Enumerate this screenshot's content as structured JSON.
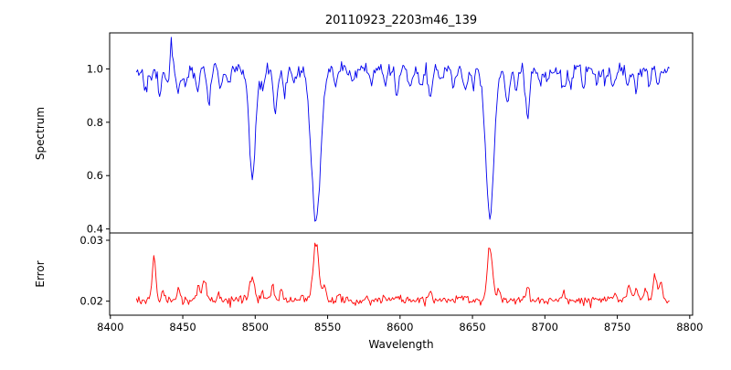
{
  "window": {
    "background": "#ffffff"
  },
  "chart_data": {
    "type": "line",
    "title": "20110923_2203m46_139",
    "xlabel": "Wavelength",
    "x_range": [
      8400,
      8800
    ],
    "x_data_range": [
      8418,
      8786
    ],
    "x_ticks": [
      8400,
      8450,
      8500,
      8550,
      8600,
      8650,
      8700,
      8750,
      8800
    ],
    "x_tick_labels": [
      "8400",
      "8450",
      "8500",
      "8550",
      "8600",
      "8650",
      "8700",
      "8750",
      "8800"
    ],
    "grid": false,
    "legend": "none",
    "panels": [
      {
        "name": "spectrum",
        "ylabel": "Spectrum",
        "ylim": [
          0.385,
          1.135
        ],
        "y_ticks": [
          0.4,
          0.6,
          0.8,
          1.0
        ],
        "y_tick_labels": [
          "0.4",
          "0.6",
          "0.8",
          "1.0"
        ],
        "color": "#0000ee",
        "baseline": 1.0,
        "noise_sigma": 0.013,
        "absorption_lines": [
          {
            "center": 8498,
            "depth": 0.41,
            "width": 2.2
          },
          {
            "center": 8542,
            "depth": 0.575,
            "width": 3.2
          },
          {
            "center": 8662,
            "depth": 0.55,
            "width": 2.8
          }
        ],
        "minor_lines": [
          [
            8424,
            0.06
          ],
          [
            8428,
            0.05
          ],
          [
            8434,
            0.09
          ],
          [
            8440,
            0.06
          ],
          [
            8447,
            0.1
          ],
          [
            8452,
            0.05
          ],
          [
            8460,
            0.07
          ],
          [
            8468,
            0.13
          ],
          [
            8476,
            0.06
          ],
          [
            8482,
            0.05
          ],
          [
            8505,
            0.08
          ],
          [
            8514,
            0.16
          ],
          [
            8520,
            0.1
          ],
          [
            8527,
            0.06
          ],
          [
            8556,
            0.06
          ],
          [
            8568,
            0.05
          ],
          [
            8580,
            0.06
          ],
          [
            8590,
            0.05
          ],
          [
            8598,
            0.09
          ],
          [
            8607,
            0.05
          ],
          [
            8615,
            0.06
          ],
          [
            8621,
            0.1
          ],
          [
            8628,
            0.05
          ],
          [
            8637,
            0.06
          ],
          [
            8645,
            0.08
          ],
          [
            8650,
            0.06
          ],
          [
            8674,
            0.12
          ],
          [
            8680,
            0.07
          ],
          [
            8688,
            0.18
          ],
          [
            8697,
            0.06
          ],
          [
            8702,
            0.05
          ],
          [
            8713,
            0.09
          ],
          [
            8718,
            0.06
          ],
          [
            8727,
            0.05
          ],
          [
            8736,
            0.07
          ],
          [
            8742,
            0.05
          ],
          [
            8747,
            0.07
          ],
          [
            8757,
            0.05
          ],
          [
            8763,
            0.07
          ],
          [
            8772,
            0.06
          ],
          [
            8778,
            0.05
          ]
        ],
        "minor_line_width": 1.3,
        "emission_spikes": [
          [
            8442,
            0.11,
            0.9
          ]
        ]
      },
      {
        "name": "error",
        "ylabel": "Error",
        "ylim": [
          0.0177,
          0.0312
        ],
        "y_ticks": [
          0.02,
          0.03
        ],
        "y_tick_labels": [
          "0.02",
          "0.03"
        ],
        "color": "#ff0000",
        "baseline": 0.02,
        "noise_sigma": 0.00035,
        "peaks": [
          [
            8430,
            0.0072,
            1.2
          ],
          [
            8436,
            0.0015,
            1.0
          ],
          [
            8447,
            0.0018,
            1.0
          ],
          [
            8461,
            0.0025,
            1.0
          ],
          [
            8465,
            0.0038,
            1.2
          ],
          [
            8475,
            0.0012,
            1.0
          ],
          [
            8498,
            0.0038,
            1.6
          ],
          [
            8505,
            0.0015,
            1.0
          ],
          [
            8512,
            0.0022,
            1.2
          ],
          [
            8518,
            0.0018,
            1.0
          ],
          [
            8542,
            0.0093,
            2.0
          ],
          [
            8548,
            0.002,
            1.0
          ],
          [
            8558,
            0.0012,
            1.0
          ],
          [
            8598,
            0.001,
            1.0
          ],
          [
            8621,
            0.0012,
            1.0
          ],
          [
            8645,
            0.001,
            1.0
          ],
          [
            8662,
            0.0088,
            1.8
          ],
          [
            8668,
            0.0018,
            1.0
          ],
          [
            8688,
            0.0022,
            1.2
          ],
          [
            8713,
            0.0012,
            1.0
          ],
          [
            8747,
            0.001,
            1.0
          ],
          [
            8758,
            0.0028,
            1.2
          ],
          [
            8763,
            0.0022,
            1.0
          ],
          [
            8770,
            0.0018,
            1.0
          ],
          [
            8776,
            0.0042,
            1.3
          ],
          [
            8780,
            0.003,
            1.0
          ]
        ]
      }
    ]
  }
}
